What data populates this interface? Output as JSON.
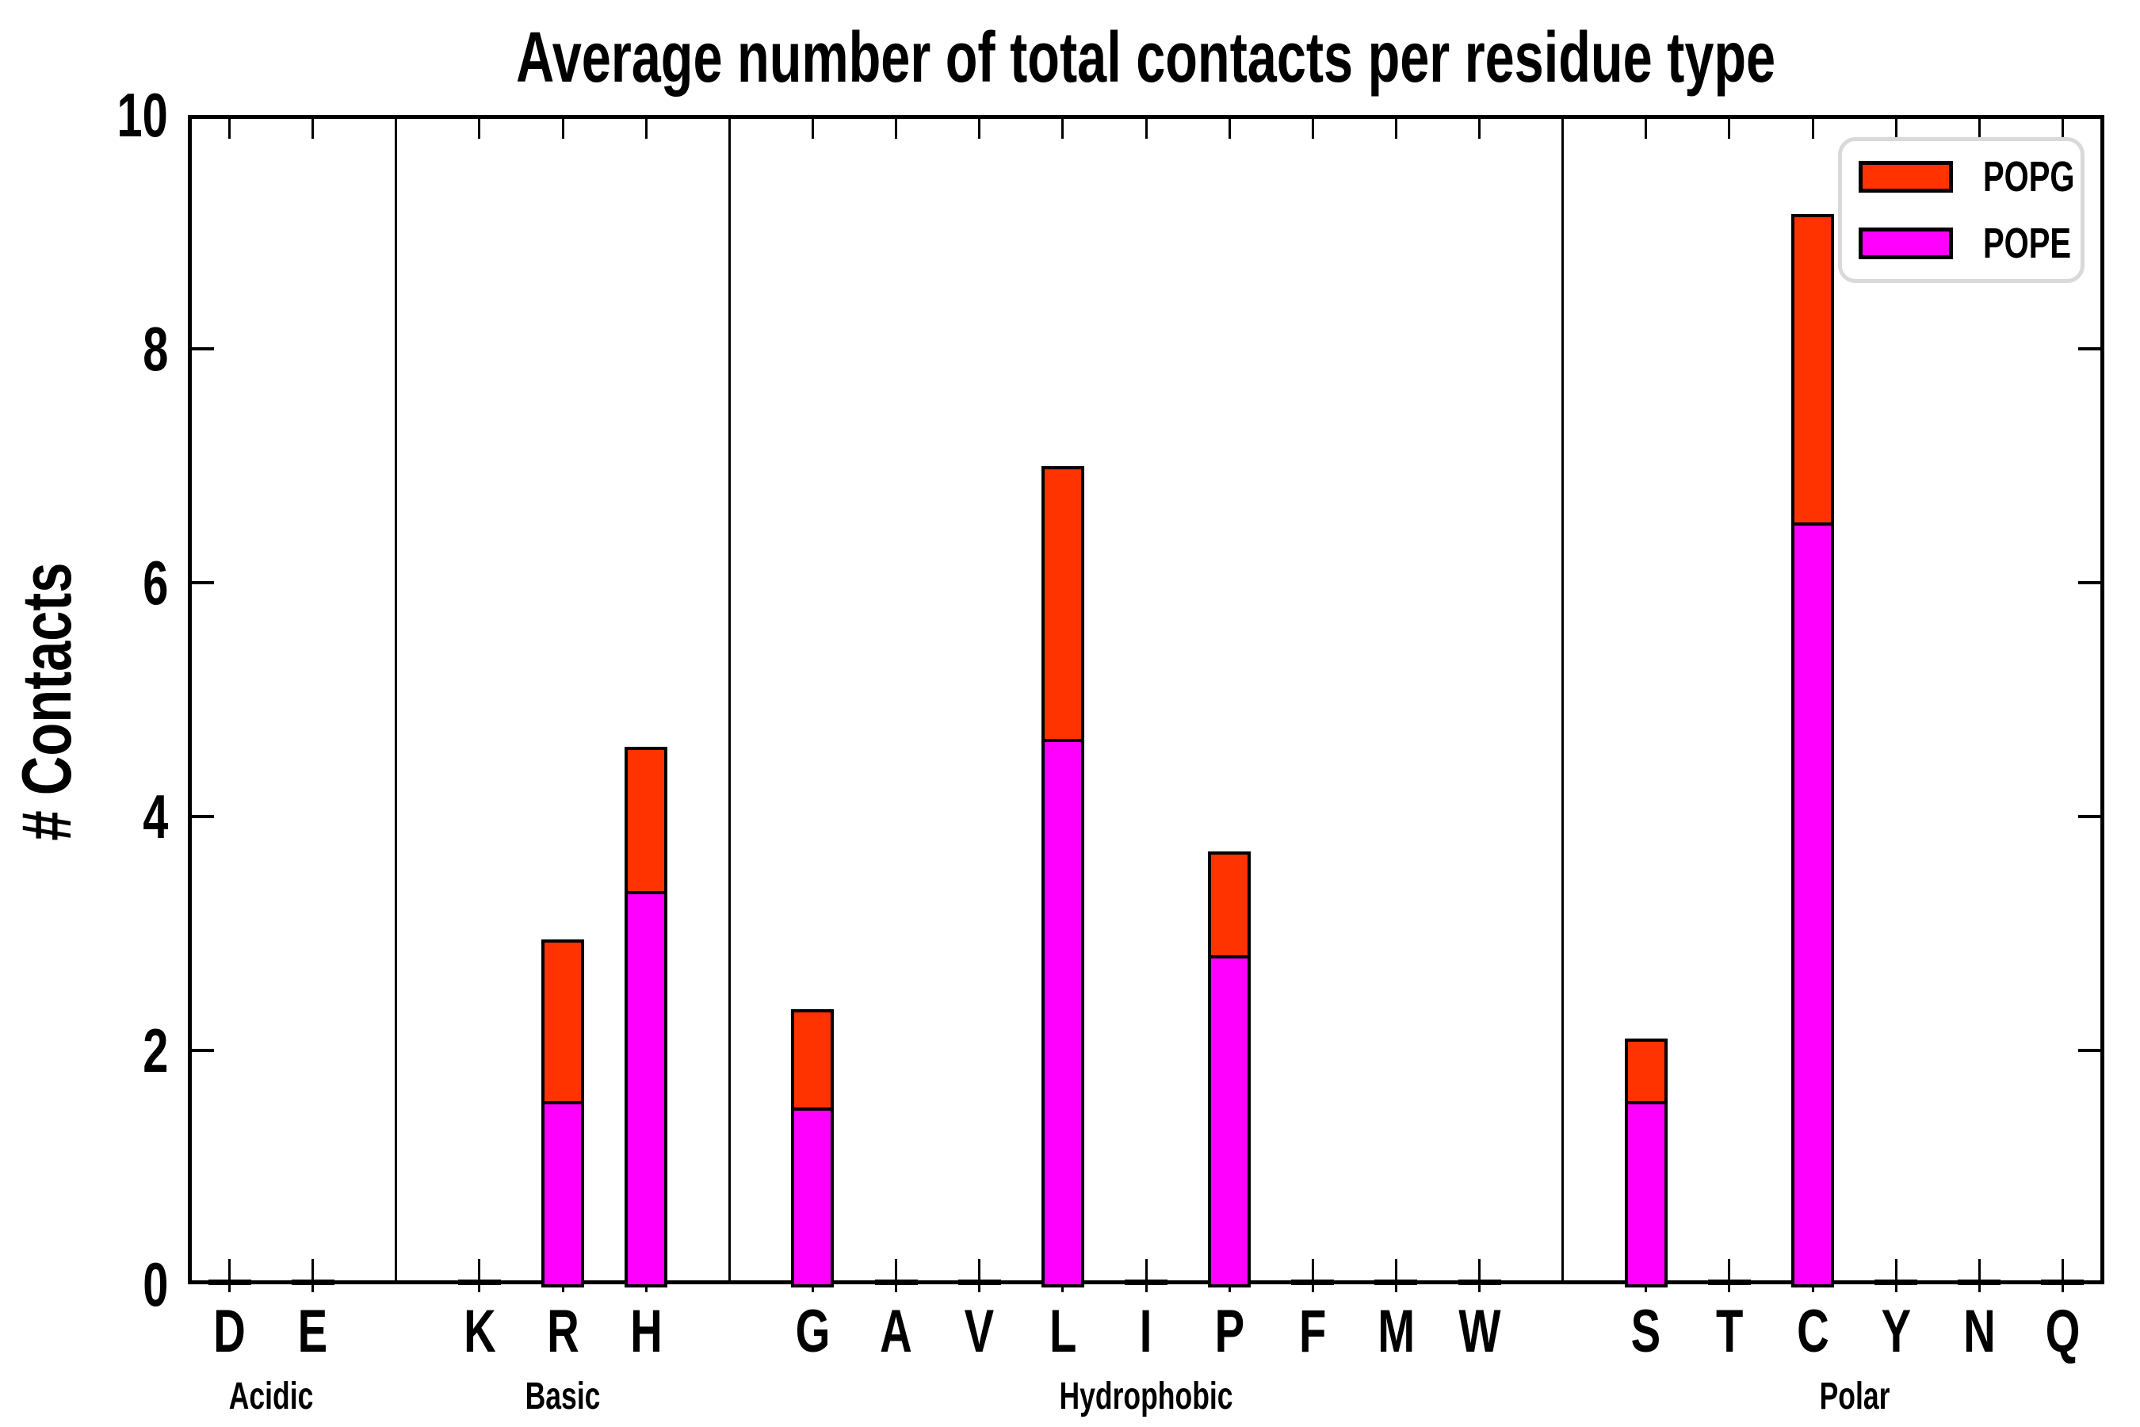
{
  "chart_data": {
    "type": "bar",
    "stacked": true,
    "title": "Average number of total contacts per residue type",
    "xlabel": "",
    "ylabel": "# Contacts",
    "ylim": [
      0,
      10
    ],
    "yticks": [
      0,
      2,
      4,
      6,
      8,
      10
    ],
    "grid": false,
    "legend_position": "upper right",
    "categories": [
      "D",
      "E",
      "K",
      "R",
      "H",
      "G",
      "A",
      "V",
      "L",
      "I",
      "P",
      "F",
      "M",
      "W",
      "S",
      "T",
      "C",
      "Y",
      "N",
      "Q"
    ],
    "groups": [
      {
        "name": "Acidic",
        "residues": [
          "D",
          "E"
        ]
      },
      {
        "name": "Basic",
        "residues": [
          "K",
          "R",
          "H"
        ]
      },
      {
        "name": "Hydrophobic",
        "residues": [
          "G",
          "A",
          "V",
          "L",
          "I",
          "P",
          "F",
          "M",
          "W"
        ]
      },
      {
        "name": "Polar",
        "residues": [
          "S",
          "T",
          "C",
          "Y",
          "N",
          "Q"
        ]
      }
    ],
    "series": [
      {
        "name": "POPE",
        "color": "#FF00FF",
        "values": [
          0,
          0,
          0,
          1.55,
          3.35,
          1.5,
          0,
          0,
          4.65,
          0,
          2.8,
          0,
          0,
          0,
          1.55,
          0,
          6.5,
          0,
          0,
          0
        ]
      },
      {
        "name": "POPG",
        "color": "#FF3300",
        "values": [
          0,
          0,
          0,
          1.4,
          1.25,
          0.85,
          0,
          0,
          2.35,
          0,
          0.9,
          0,
          0,
          0,
          0.55,
          0,
          2.65,
          0,
          0,
          0
        ]
      }
    ],
    "totals": [
      0,
      0,
      0,
      2.95,
      4.6,
      2.35,
      0,
      0,
      7.0,
      0,
      3.7,
      0,
      0,
      0,
      2.1,
      0,
      9.15,
      0,
      0,
      0
    ],
    "legend": [
      {
        "label": "POPG",
        "color": "#FF3300"
      },
      {
        "label": "POPE",
        "color": "#FF00FF"
      }
    ],
    "colors": {
      "axis": "#000000",
      "background": "#FFFFFF",
      "legend_border": "#D9D9D9"
    }
  }
}
